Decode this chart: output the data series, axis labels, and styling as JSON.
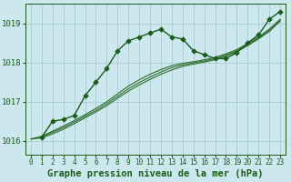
{
  "background_color": "#cce8ee",
  "plot_bg_color": "#cce8ee",
  "grid_color": "#aacccc",
  "line_color_main": "#1a5c1a",
  "line_color_smooth": "#2d6e2d",
  "xlabel": "Graphe pression niveau de la mer (hPa)",
  "xlabel_fontsize": 7.5,
  "ytick_fontsize": 6.5,
  "xtick_fontsize": 5.5,
  "ylim": [
    1015.65,
    1019.5
  ],
  "xlim": [
    -0.5,
    23.5
  ],
  "yticks": [
    1016,
    1017,
    1018,
    1019
  ],
  "xticks": [
    0,
    1,
    2,
    3,
    4,
    5,
    6,
    7,
    8,
    9,
    10,
    11,
    12,
    13,
    14,
    15,
    16,
    17,
    18,
    19,
    20,
    21,
    22,
    23
  ],
  "series_main": {
    "x": [
      1,
      2,
      3,
      4,
      5,
      6,
      7,
      8,
      9,
      10,
      11,
      12,
      13,
      14,
      15,
      16,
      17,
      18,
      19,
      20,
      21,
      22,
      23
    ],
    "y": [
      1016.1,
      1016.5,
      1016.55,
      1016.65,
      1017.15,
      1017.5,
      1017.85,
      1018.3,
      1018.55,
      1018.65,
      1018.75,
      1018.85,
      1018.65,
      1018.6,
      1018.3,
      1018.2,
      1018.1,
      1018.1,
      1018.25,
      1018.5,
      1018.7,
      1019.1,
      1019.3
    ]
  },
  "series_smooth1": {
    "x": [
      0,
      1,
      2,
      3,
      4,
      5,
      6,
      7,
      8,
      9,
      10,
      11,
      12,
      13,
      14,
      15,
      16,
      17,
      18,
      19,
      20,
      21,
      22,
      23
    ],
    "y": [
      1016.05,
      1016.12,
      1016.25,
      1016.38,
      1016.52,
      1016.67,
      1016.83,
      1017.0,
      1017.2,
      1017.4,
      1017.56,
      1017.7,
      1017.82,
      1017.92,
      1017.98,
      1018.02,
      1018.07,
      1018.13,
      1018.22,
      1018.33,
      1018.48,
      1018.65,
      1018.85,
      1019.1
    ]
  },
  "series_smooth2": {
    "x": [
      0,
      1,
      2,
      3,
      4,
      5,
      6,
      7,
      8,
      9,
      10,
      11,
      12,
      13,
      14,
      15,
      16,
      17,
      18,
      19,
      20,
      21,
      22,
      23
    ],
    "y": [
      1016.05,
      1016.1,
      1016.22,
      1016.34,
      1016.48,
      1016.63,
      1016.78,
      1016.95,
      1017.14,
      1017.33,
      1017.49,
      1017.63,
      1017.76,
      1017.87,
      1017.94,
      1017.99,
      1018.04,
      1018.1,
      1018.19,
      1018.3,
      1018.45,
      1018.62,
      1018.82,
      1019.08
    ]
  },
  "series_smooth3": {
    "x": [
      0,
      1,
      2,
      3,
      4,
      5,
      6,
      7,
      8,
      9,
      10,
      11,
      12,
      13,
      14,
      15,
      16,
      17,
      18,
      19,
      20,
      21,
      22,
      23
    ],
    "y": [
      1016.05,
      1016.08,
      1016.18,
      1016.3,
      1016.44,
      1016.59,
      1016.74,
      1016.9,
      1017.09,
      1017.27,
      1017.43,
      1017.57,
      1017.7,
      1017.81,
      1017.9,
      1017.96,
      1018.01,
      1018.07,
      1018.16,
      1018.27,
      1018.43,
      1018.6,
      1018.79,
      1019.05
    ]
  }
}
